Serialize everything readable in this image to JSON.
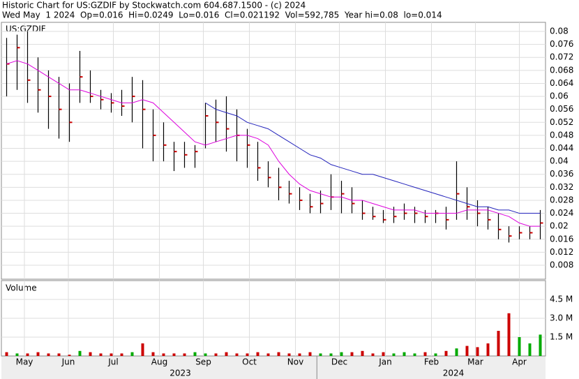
{
  "chart_data": {
    "type": "ohlc",
    "title": "Historic Chart for US:GZDIF by Stockwatch.com 604.687.1500 - (c) 2024",
    "subtitle": "Wed May  1 2024  Op=0.016  Hi=0.0249  Lo=0.016  Cl=0.021192  Vol=592,785  Year hi=0.08  lo=0.014",
    "symbol": "US:GZDIF",
    "volume_label": "Volume",
    "categories": [
      null,
      null,
      null,
      null,
      null,
      null,
      null,
      null,
      null,
      null,
      null,
      null,
      null,
      null,
      null,
      null,
      null,
      null,
      null,
      null,
      null,
      null,
      null,
      null,
      null,
      null,
      null,
      null,
      null,
      null,
      null,
      null,
      null,
      null,
      null,
      null,
      null,
      null,
      null,
      null,
      null,
      null,
      null,
      null,
      null,
      null,
      null,
      null,
      null,
      null,
      null,
      null
    ],
    "high": [
      0.078,
      0.079,
      0.08,
      0.072,
      0.068,
      0.066,
      0.064,
      0.074,
      0.068,
      0.062,
      0.061,
      0.062,
      0.066,
      0.065,
      0.056,
      0.052,
      0.046,
      0.046,
      0.045,
      0.058,
      0.059,
      0.06,
      0.056,
      0.05,
      0.046,
      0.04,
      0.038,
      0.034,
      0.032,
      0.03,
      0.031,
      0.036,
      0.034,
      0.032,
      0.028,
      0.026,
      0.025,
      0.026,
      0.027,
      0.026,
      0.025,
      0.025,
      0.026,
      0.04,
      0.032,
      0.028,
      0.026,
      0.024,
      0.02,
      0.02,
      0.02,
      0.025
    ],
    "low": [
      0.06,
      0.062,
      0.058,
      0.055,
      0.05,
      0.047,
      0.046,
      0.058,
      0.058,
      0.056,
      0.055,
      0.054,
      0.052,
      0.044,
      0.04,
      0.04,
      0.037,
      0.038,
      0.038,
      0.044,
      0.046,
      0.043,
      0.04,
      0.038,
      0.034,
      0.032,
      0.028,
      0.027,
      0.025,
      0.024,
      0.024,
      0.025,
      0.024,
      0.024,
      0.022,
      0.022,
      0.021,
      0.021,
      0.022,
      0.021,
      0.021,
      0.021,
      0.019,
      0.022,
      0.022,
      0.02,
      0.019,
      0.016,
      0.015,
      0.016,
      0.016,
      0.016
    ],
    "close": [
      0.07,
      0.075,
      0.065,
      0.062,
      0.06,
      0.056,
      0.052,
      0.066,
      0.06,
      0.059,
      0.058,
      0.057,
      0.06,
      0.056,
      0.048,
      0.045,
      0.043,
      0.042,
      0.043,
      0.054,
      0.052,
      0.05,
      0.048,
      0.045,
      0.038,
      0.035,
      0.032,
      0.03,
      0.028,
      0.026,
      0.027,
      0.029,
      0.03,
      0.027,
      0.024,
      0.023,
      0.022,
      0.023,
      0.024,
      0.024,
      0.023,
      0.024,
      0.022,
      0.03,
      0.026,
      0.024,
      0.022,
      0.019,
      0.017,
      0.018,
      0.018,
      0.021
    ],
    "bar_color": "#000000",
    "close_color": "#cc0000",
    "series": [
      {
        "color": "#dd00dd",
        "values": [
          0.07,
          0.071,
          0.07,
          0.068,
          0.066,
          0.064,
          0.062,
          0.062,
          0.061,
          0.06,
          0.059,
          0.058,
          0.058,
          0.059,
          0.058,
          0.055,
          0.052,
          0.049,
          0.046,
          0.045,
          0.046,
          0.047,
          0.048,
          0.048,
          0.047,
          0.045,
          0.04,
          0.036,
          0.033,
          0.031,
          0.03,
          0.029,
          0.029,
          0.028,
          0.028,
          0.027,
          0.026,
          0.025,
          0.025,
          0.025,
          0.024,
          0.024,
          0.024,
          0.024,
          0.025,
          0.025,
          0.025,
          0.024,
          0.023,
          0.021,
          0.02,
          0.02
        ]
      },
      {
        "color": "#2222bb",
        "values": [
          null,
          null,
          null,
          null,
          null,
          null,
          null,
          null,
          null,
          null,
          null,
          null,
          null,
          null,
          null,
          null,
          null,
          null,
          null,
          0.058,
          0.056,
          0.055,
          0.054,
          0.052,
          0.051,
          0.05,
          0.048,
          0.046,
          0.044,
          0.042,
          0.041,
          0.039,
          0.038,
          0.037,
          0.036,
          0.036,
          0.035,
          0.034,
          0.033,
          0.032,
          0.031,
          0.03,
          0.029,
          0.028,
          0.027,
          0.026,
          0.026,
          0.025,
          0.025,
          0.024,
          0.024,
          0.024
        ]
      }
    ],
    "volume": [
      0.3,
      0.2,
      0.2,
      0.3,
      0.2,
      0.2,
      0.1,
      0.4,
      0.3,
      0.2,
      0.2,
      0.2,
      0.3,
      1.0,
      0.3,
      0.2,
      0.2,
      0.2,
      0.3,
      0.2,
      0.2,
      0.3,
      0.2,
      0.2,
      0.3,
      0.2,
      0.3,
      0.2,
      0.2,
      0.3,
      0.2,
      0.2,
      0.3,
      0.3,
      0.4,
      0.2,
      0.3,
      0.2,
      0.3,
      0.2,
      0.3,
      0.2,
      0.4,
      0.6,
      0.8,
      0.7,
      1.0,
      2.0,
      3.4,
      1.5,
      1.0,
      1.7
    ],
    "volume_up_color": "#00aa00",
    "volume_down_color": "#cc0000",
    "xlim": [
      0,
      52
    ],
    "ylim": [
      0.0037,
      0.0828
    ],
    "yticks": [
      0.08,
      0.076,
      0.072,
      0.068,
      0.064,
      0.06,
      0.056,
      0.052,
      0.048,
      0.044,
      0.04,
      0.036,
      0.032,
      0.028,
      0.024,
      0.02,
      0.016,
      0.012,
      0.008
    ],
    "y2lim": [
      0,
      6.0
    ],
    "y2ticks": [
      {
        "value": 4.5,
        "label": "4.5 M"
      },
      {
        "value": 3.0,
        "label": "3.0 M"
      },
      {
        "value": 1.5,
        "label": "1.5 M"
      }
    ],
    "xticks": [
      {
        "value": 2.2,
        "label": "May"
      },
      {
        "value": 6.4,
        "label": "Jun"
      },
      {
        "value": 10.7,
        "label": "Jul"
      },
      {
        "value": 15.1,
        "label": "Aug"
      },
      {
        "value": 19.3,
        "label": "Sep"
      },
      {
        "value": 23.7,
        "label": "Oct"
      },
      {
        "value": 28.1,
        "label": "Nov"
      },
      {
        "value": 32.3,
        "label": "Dec"
      },
      {
        "value": 36.7,
        "label": "Jan"
      },
      {
        "value": 41.1,
        "label": "Feb"
      },
      {
        "value": 45.3,
        "label": "Mar"
      },
      {
        "value": 49.5,
        "label": "Apr"
      }
    ],
    "years": [
      {
        "value": 17.1,
        "label": "2023"
      },
      {
        "value": 43.2,
        "label": "2024"
      }
    ],
    "grid": true
  }
}
